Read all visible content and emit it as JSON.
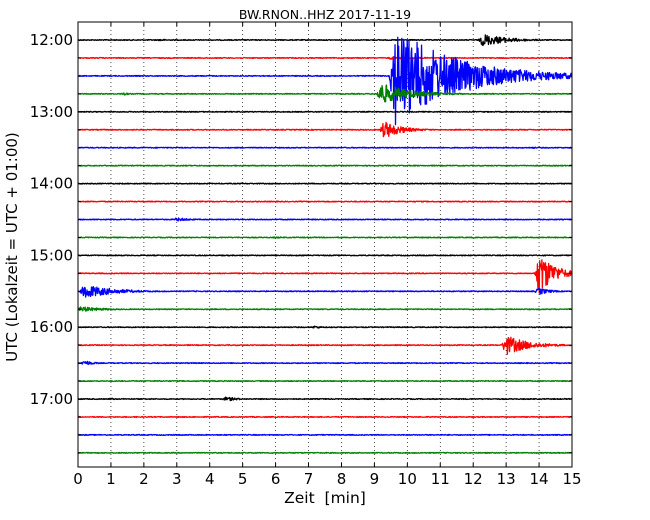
{
  "chart_data": {
    "type": "line",
    "title": "BW.RNON..HHZ 2017-11-19",
    "xlabel": "Zeit  [min]",
    "ylabel": "UTC (Lokalzeit = UTC + 01:00)",
    "xlim": [
      0,
      15
    ],
    "x_ticks": [
      0,
      1,
      2,
      3,
      4,
      5,
      6,
      7,
      8,
      9,
      10,
      11,
      12,
      13,
      14,
      15
    ],
    "y_tick_labels": [
      "12:00",
      "13:00",
      "14:00",
      "15:00",
      "16:00",
      "17:00"
    ],
    "trace_interval_min": 15,
    "grid": "vertical dotted lines at each minute",
    "color_cycle": [
      "#000000",
      "#ff0000",
      "#0000ff",
      "#008000"
    ],
    "traces": [
      {
        "start": "12:00",
        "color": "#000000",
        "events": [
          {
            "t": 12.3,
            "amp": 0.35,
            "dur": 2.2
          },
          {
            "t": 2.5,
            "amp": 0.06,
            "dur": 0.8
          }
        ]
      },
      {
        "start": "12:15",
        "color": "#ff0000",
        "events": [
          {
            "t": 9.5,
            "amp": 0.08,
            "dur": 3.5
          }
        ]
      },
      {
        "start": "12:30",
        "color": "#0000ff",
        "events": [
          {
            "t": 9.6,
            "amp": 2.8,
            "dur": 5.5
          }
        ]
      },
      {
        "start": "12:45",
        "color": "#008000",
        "events": [
          {
            "t": 9.2,
            "amp": 0.6,
            "dur": 2.5
          },
          {
            "t": 1.4,
            "amp": 0.08,
            "dur": 0.5
          }
        ]
      },
      {
        "start": "13:00",
        "color": "#000000",
        "events": []
      },
      {
        "start": "13:15",
        "color": "#ff0000",
        "events": [
          {
            "t": 9.3,
            "amp": 0.5,
            "dur": 1.5
          }
        ]
      },
      {
        "start": "13:30",
        "color": "#0000ff",
        "events": [
          {
            "t": 13.8,
            "amp": 0.05,
            "dur": 0.6
          }
        ]
      },
      {
        "start": "13:45",
        "color": "#008000",
        "events": []
      },
      {
        "start": "14:00",
        "color": "#000000",
        "events": []
      },
      {
        "start": "14:15",
        "color": "#ff0000",
        "events": []
      },
      {
        "start": "14:30",
        "color": "#0000ff",
        "events": [
          {
            "t": 3.0,
            "amp": 0.1,
            "dur": 1.5
          }
        ]
      },
      {
        "start": "14:45",
        "color": "#008000",
        "events": [
          {
            "t": 6.0,
            "amp": 0.05,
            "dur": 0.8
          }
        ]
      },
      {
        "start": "15:00",
        "color": "#000000",
        "events": []
      },
      {
        "start": "15:15",
        "color": "#ff0000",
        "events": [
          {
            "t": 14.0,
            "amp": 1.2,
            "dur": 1.4
          }
        ]
      },
      {
        "start": "15:30",
        "color": "#0000ff",
        "events": [
          {
            "t": 0.2,
            "amp": 0.4,
            "dur": 2.5
          },
          {
            "t": 14.0,
            "amp": 0.2,
            "dur": 1.0
          }
        ]
      },
      {
        "start": "15:45",
        "color": "#008000",
        "events": [
          {
            "t": 0.1,
            "amp": 0.15,
            "dur": 2.0
          }
        ]
      },
      {
        "start": "16:00",
        "color": "#000000",
        "events": [
          {
            "t": 7.2,
            "amp": 0.08,
            "dur": 0.7
          }
        ]
      },
      {
        "start": "16:15",
        "color": "#ff0000",
        "events": [
          {
            "t": 13.0,
            "amp": 0.55,
            "dur": 2.0
          }
        ]
      },
      {
        "start": "16:30",
        "color": "#0000ff",
        "events": [
          {
            "t": 0.2,
            "amp": 0.15,
            "dur": 0.8
          }
        ]
      },
      {
        "start": "16:45",
        "color": "#008000",
        "events": []
      },
      {
        "start": "17:00",
        "color": "#000000",
        "events": [
          {
            "t": 4.5,
            "amp": 0.12,
            "dur": 1.2
          },
          {
            "t": 1.0,
            "amp": 0.06,
            "dur": 0.5
          }
        ]
      },
      {
        "start": "17:15",
        "color": "#ff0000",
        "events": []
      },
      {
        "start": "17:30",
        "color": "#0000ff",
        "events": []
      },
      {
        "start": "17:45",
        "color": "#008000",
        "events": []
      }
    ]
  }
}
